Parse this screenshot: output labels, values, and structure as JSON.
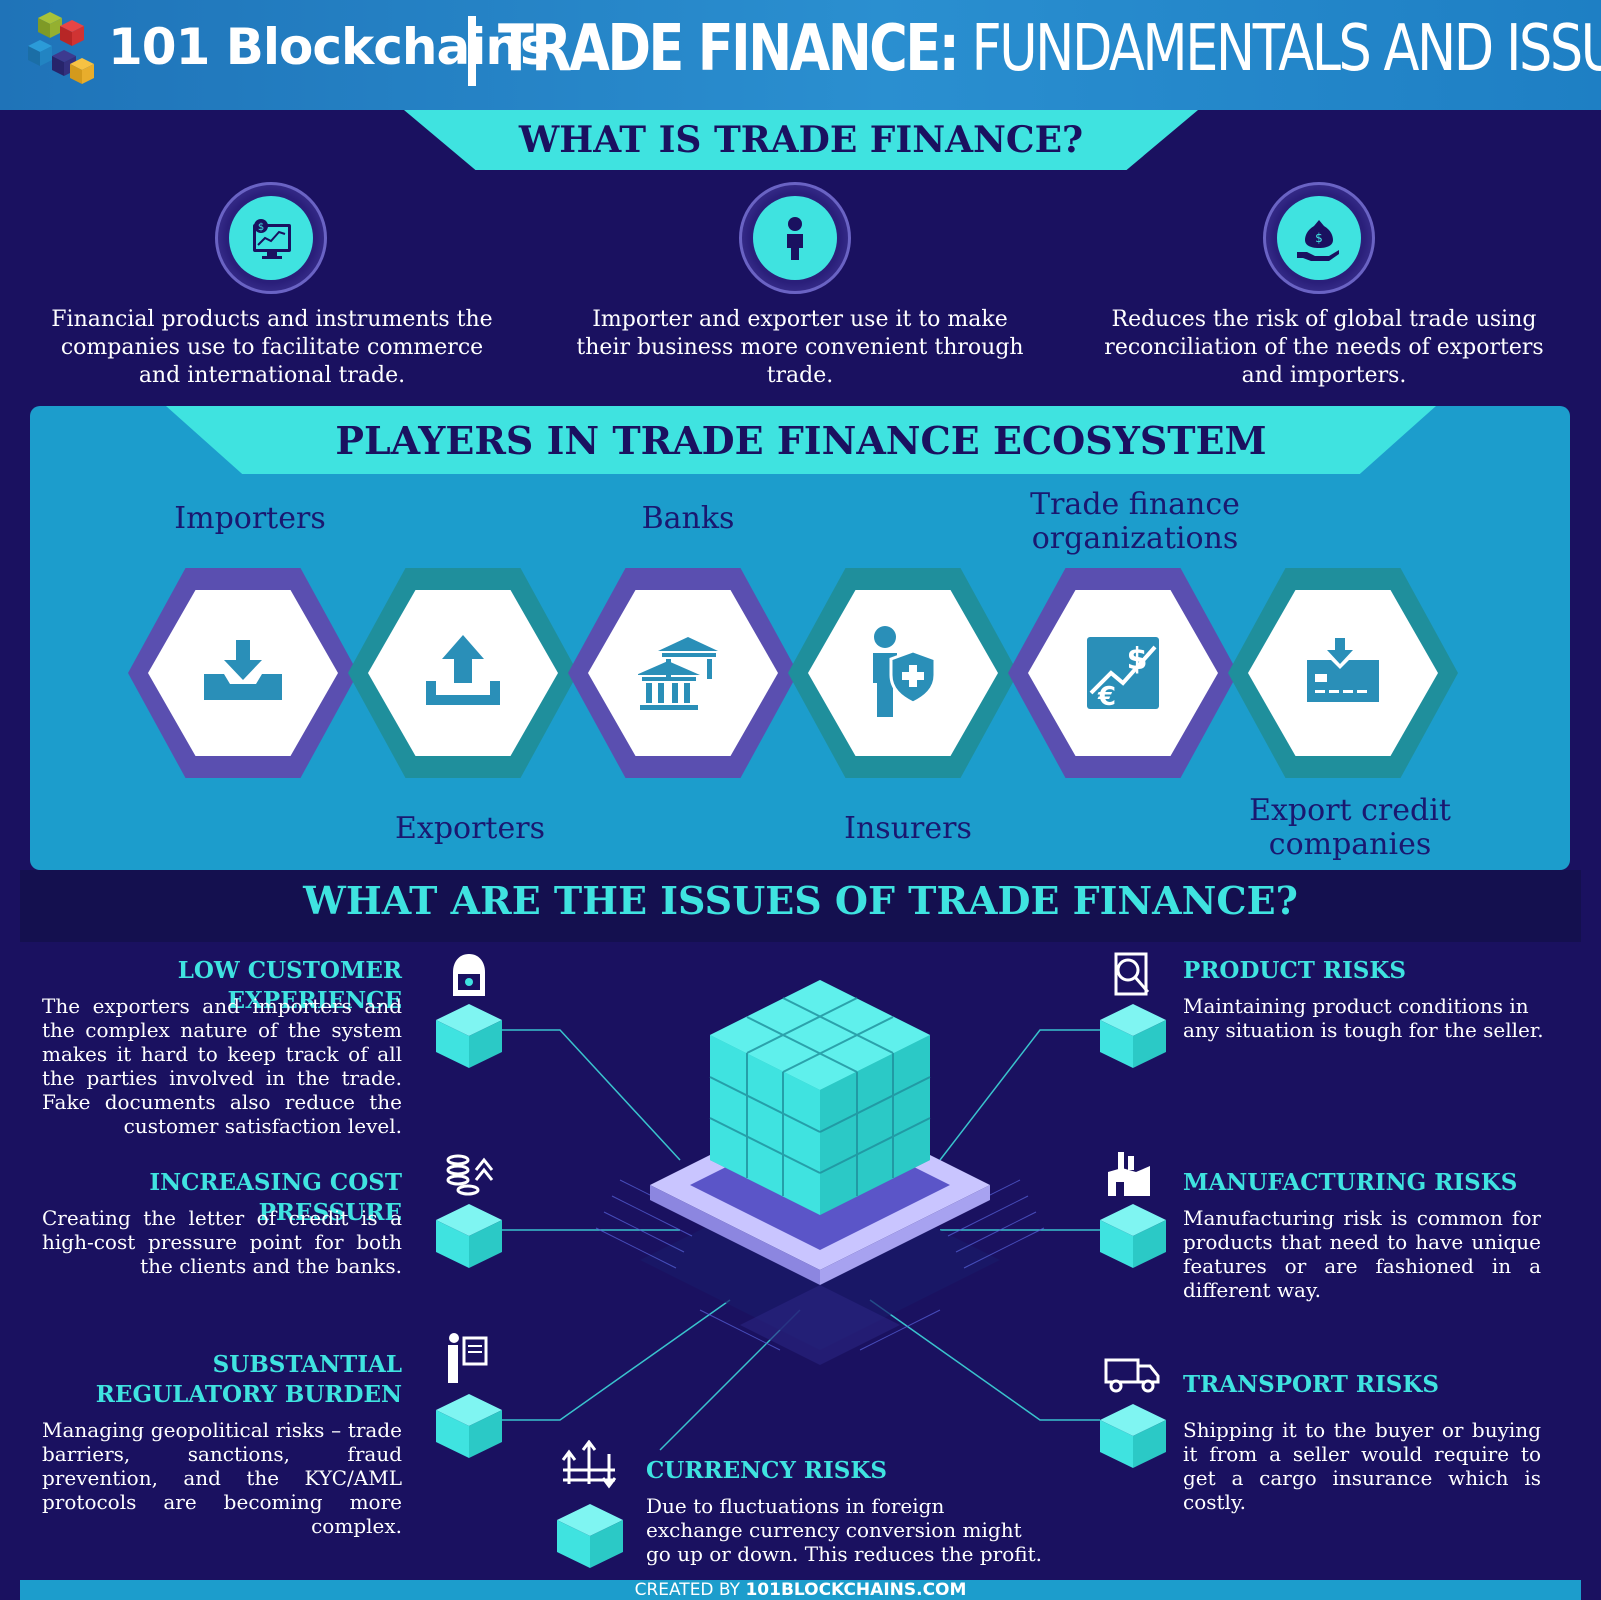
{
  "header": {
    "brand": "101 Blockchains",
    "title_bold": "TRADE FINANCE:",
    "title_light": " FUNDAMENTALS AND ISSUES"
  },
  "what_is": {
    "heading": "WHAT IS TRADE FINANCE?",
    "items": [
      {
        "icon": "financial-chart-icon",
        "text": "Financial products and instruments the companies use to facilitate commerce and international trade."
      },
      {
        "icon": "person-icon",
        "text": "Importer and exporter use it to make their business more convenient through trade."
      },
      {
        "icon": "money-bag-hand-icon",
        "text": "Reduces the risk of global trade using reconciliation of the needs of exporters and importers."
      }
    ]
  },
  "players": {
    "heading": "PLAYERS IN TRADE FINANCE ECOSYSTEM",
    "items": [
      {
        "label": "Importers",
        "icon": "download-tray-icon"
      },
      {
        "label": "Exporters",
        "icon": "upload-tray-icon"
      },
      {
        "label": "Banks",
        "icon": "bank-icon"
      },
      {
        "label": "Insurers",
        "icon": "insurer-shield-icon"
      },
      {
        "label": "Trade finance organizations",
        "icon": "currency-chart-icon"
      },
      {
        "label": "Export credit companies",
        "icon": "credit-card-icon"
      }
    ]
  },
  "issues": {
    "heading": "WHAT ARE THE ISSUES OF TRADE FINANCE?",
    "items": [
      {
        "title": "LOW CUSTOMER EXPERIENCE",
        "icon": "hacker-icon",
        "text": "The exporters and importers and the complex nature of the system makes it hard to keep track of all the parties involved in the trade. Fake documents also reduce the customer satisfaction level."
      },
      {
        "title": "INCREASING COST PRESSURE",
        "icon": "coins-arrow-icon",
        "text": "Creating the letter of credit is a high-cost pressure point for both the clients and the banks."
      },
      {
        "title": "SUBSTANTIAL REGULATORY BURDEN",
        "icon": "presenter-board-icon",
        "text": "Managing geopolitical risks – trade barriers, sanctions, fraud prevention, and the KYC/AML protocols are becoming more complex."
      },
      {
        "title": "CURRENCY RISKS",
        "icon": "exchange-arrows-icon",
        "text": "Due to fluctuations in foreign exchange currency conversion might go up or down. This reduces the profit."
      },
      {
        "title": "PRODUCT RISKS",
        "icon": "document-search-icon",
        "text": "Maintaining product conditions in any situation is tough for the seller."
      },
      {
        "title": "MANUFACTURING RISKS",
        "icon": "factory-icon",
        "text": "Manufacturing risk is common for products that need to have unique features or are fashioned in a different way."
      },
      {
        "title": "TRANSPORT RISKS",
        "icon": "truck-icon",
        "text": "Shipping it to the buyer or buying it from a seller would require to get a cargo insurance which is costly."
      }
    ]
  },
  "footer": {
    "prefix": "CREATED BY ",
    "site": "101BLOCKCHAINS.COM"
  },
  "colors": {
    "background": "#1a1160",
    "accent": "#3fe3e0",
    "header": "#2a8fd0",
    "panel": "#1c9dcc"
  }
}
